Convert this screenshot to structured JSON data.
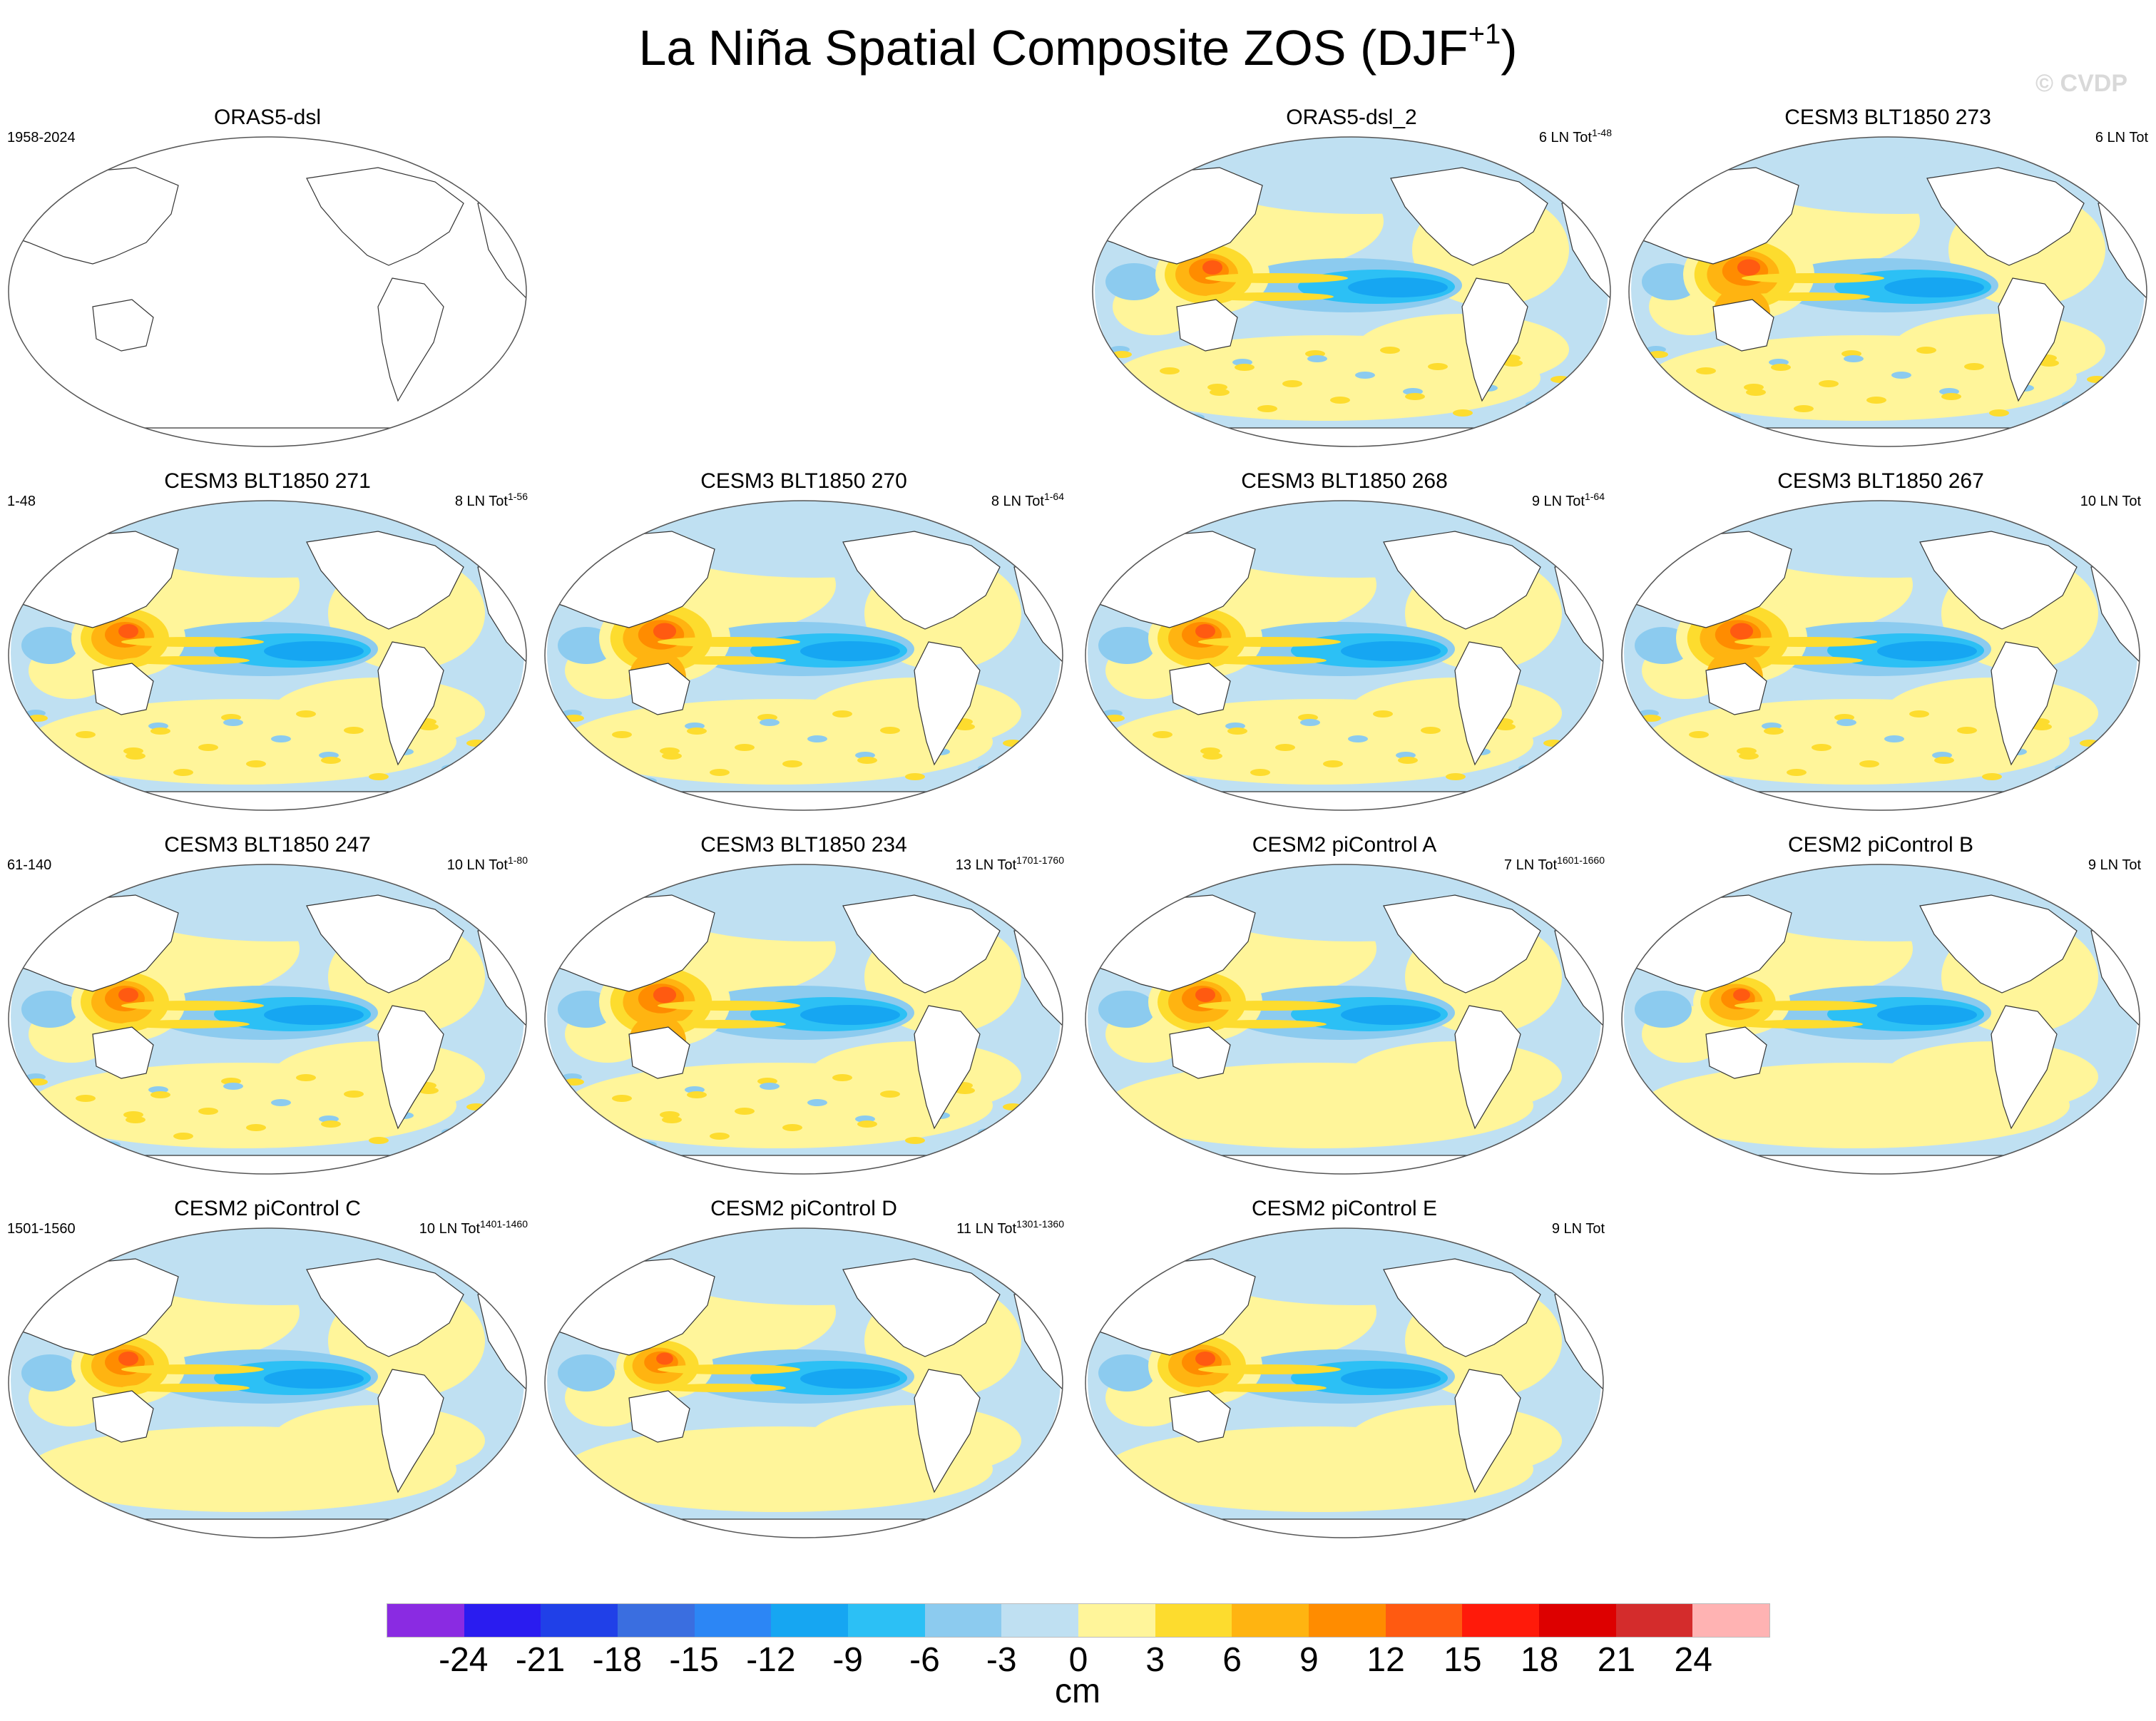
{
  "header": {
    "title_main": "La Niña Spatial Composite ZOS (DJF",
    "title_sup": "+1",
    "title_end": ")",
    "copyright": "© CVDP"
  },
  "panels": [
    {
      "title": "ORAS5-dsl",
      "left": "1958-2024",
      "right_text": "",
      "right_sup": "",
      "filled": false,
      "style": 0
    },
    {
      "title": "ORAS5-dsl_2",
      "left": "",
      "right_text": "6 LN Tot",
      "right_sup": "1-48",
      "filled": true,
      "style": 1
    },
    {
      "title": "CESM3 BLT1850 273",
      "left": "",
      "right_text": "6 LN Tot",
      "right_sup": "",
      "filled": true,
      "style": 2
    },
    {
      "title": "CESM3 BLT1850 271",
      "left": "1-48",
      "right_text": "8 LN Tot",
      "right_sup": "1-56",
      "filled": true,
      "style": 1
    },
    {
      "title": "CESM3 BLT1850 270",
      "left": "",
      "right_text": "8 LN Tot",
      "right_sup": "1-64",
      "filled": true,
      "style": 2
    },
    {
      "title": "CESM3 BLT1850 268",
      "left": "",
      "right_text": "9 LN Tot",
      "right_sup": "1-64",
      "filled": true,
      "style": 1
    },
    {
      "title": "CESM3 BLT1850 267",
      "left": "",
      "right_text": "10 LN Tot",
      "right_sup": "",
      "filled": true,
      "style": 2
    },
    {
      "title": "CESM3 BLT1850 247",
      "left": "61-140",
      "right_text": "10 LN Tot",
      "right_sup": "1-80",
      "filled": true,
      "style": 1
    },
    {
      "title": "CESM3 BLT1850 234",
      "left": "",
      "right_text": "13 LN Tot",
      "right_sup": "1701-1760",
      "filled": true,
      "style": 2
    },
    {
      "title": "CESM2 piControl A",
      "left": "",
      "right_text": "7 LN Tot",
      "right_sup": "1601-1660",
      "filled": true,
      "style": 3
    },
    {
      "title": "CESM2 piControl B",
      "left": "",
      "right_text": "9 LN Tot",
      "right_sup": "",
      "filled": true,
      "style": 4
    },
    {
      "title": "CESM2 piControl C",
      "left": "1501-1560",
      "right_text": "10 LN Tot",
      "right_sup": "1401-1460",
      "filled": true,
      "style": 3
    },
    {
      "title": "CESM2 piControl D",
      "left": "",
      "right_text": "11 LN Tot",
      "right_sup": "1301-1360",
      "filled": true,
      "style": 4
    },
    {
      "title": "CESM2 piControl E",
      "left": "",
      "right_text": "9 LN Tot",
      "right_sup": "",
      "filled": true,
      "style": 3
    }
  ],
  "colorbar": {
    "unit": "cm",
    "ticks": [
      "-24",
      "-21",
      "-18",
      "-15",
      "-12",
      "-9",
      "-6",
      "-3",
      "0",
      "3",
      "6",
      "9",
      "12",
      "15",
      "18",
      "21",
      "24"
    ],
    "colors": [
      "#8a2be2",
      "#2a1cf0",
      "#2040e8",
      "#3a6ee0",
      "#2c86f5",
      "#16a6f2",
      "#2cc0f5",
      "#8ccbef",
      "#bfe0f2",
      "#fff59a",
      "#fddc2e",
      "#ffb411",
      "#ff8c00",
      "#ff5a11",
      "#ff1a0a",
      "#dd0000",
      "#d42c2c",
      "#ffb3b3"
    ]
  }
}
